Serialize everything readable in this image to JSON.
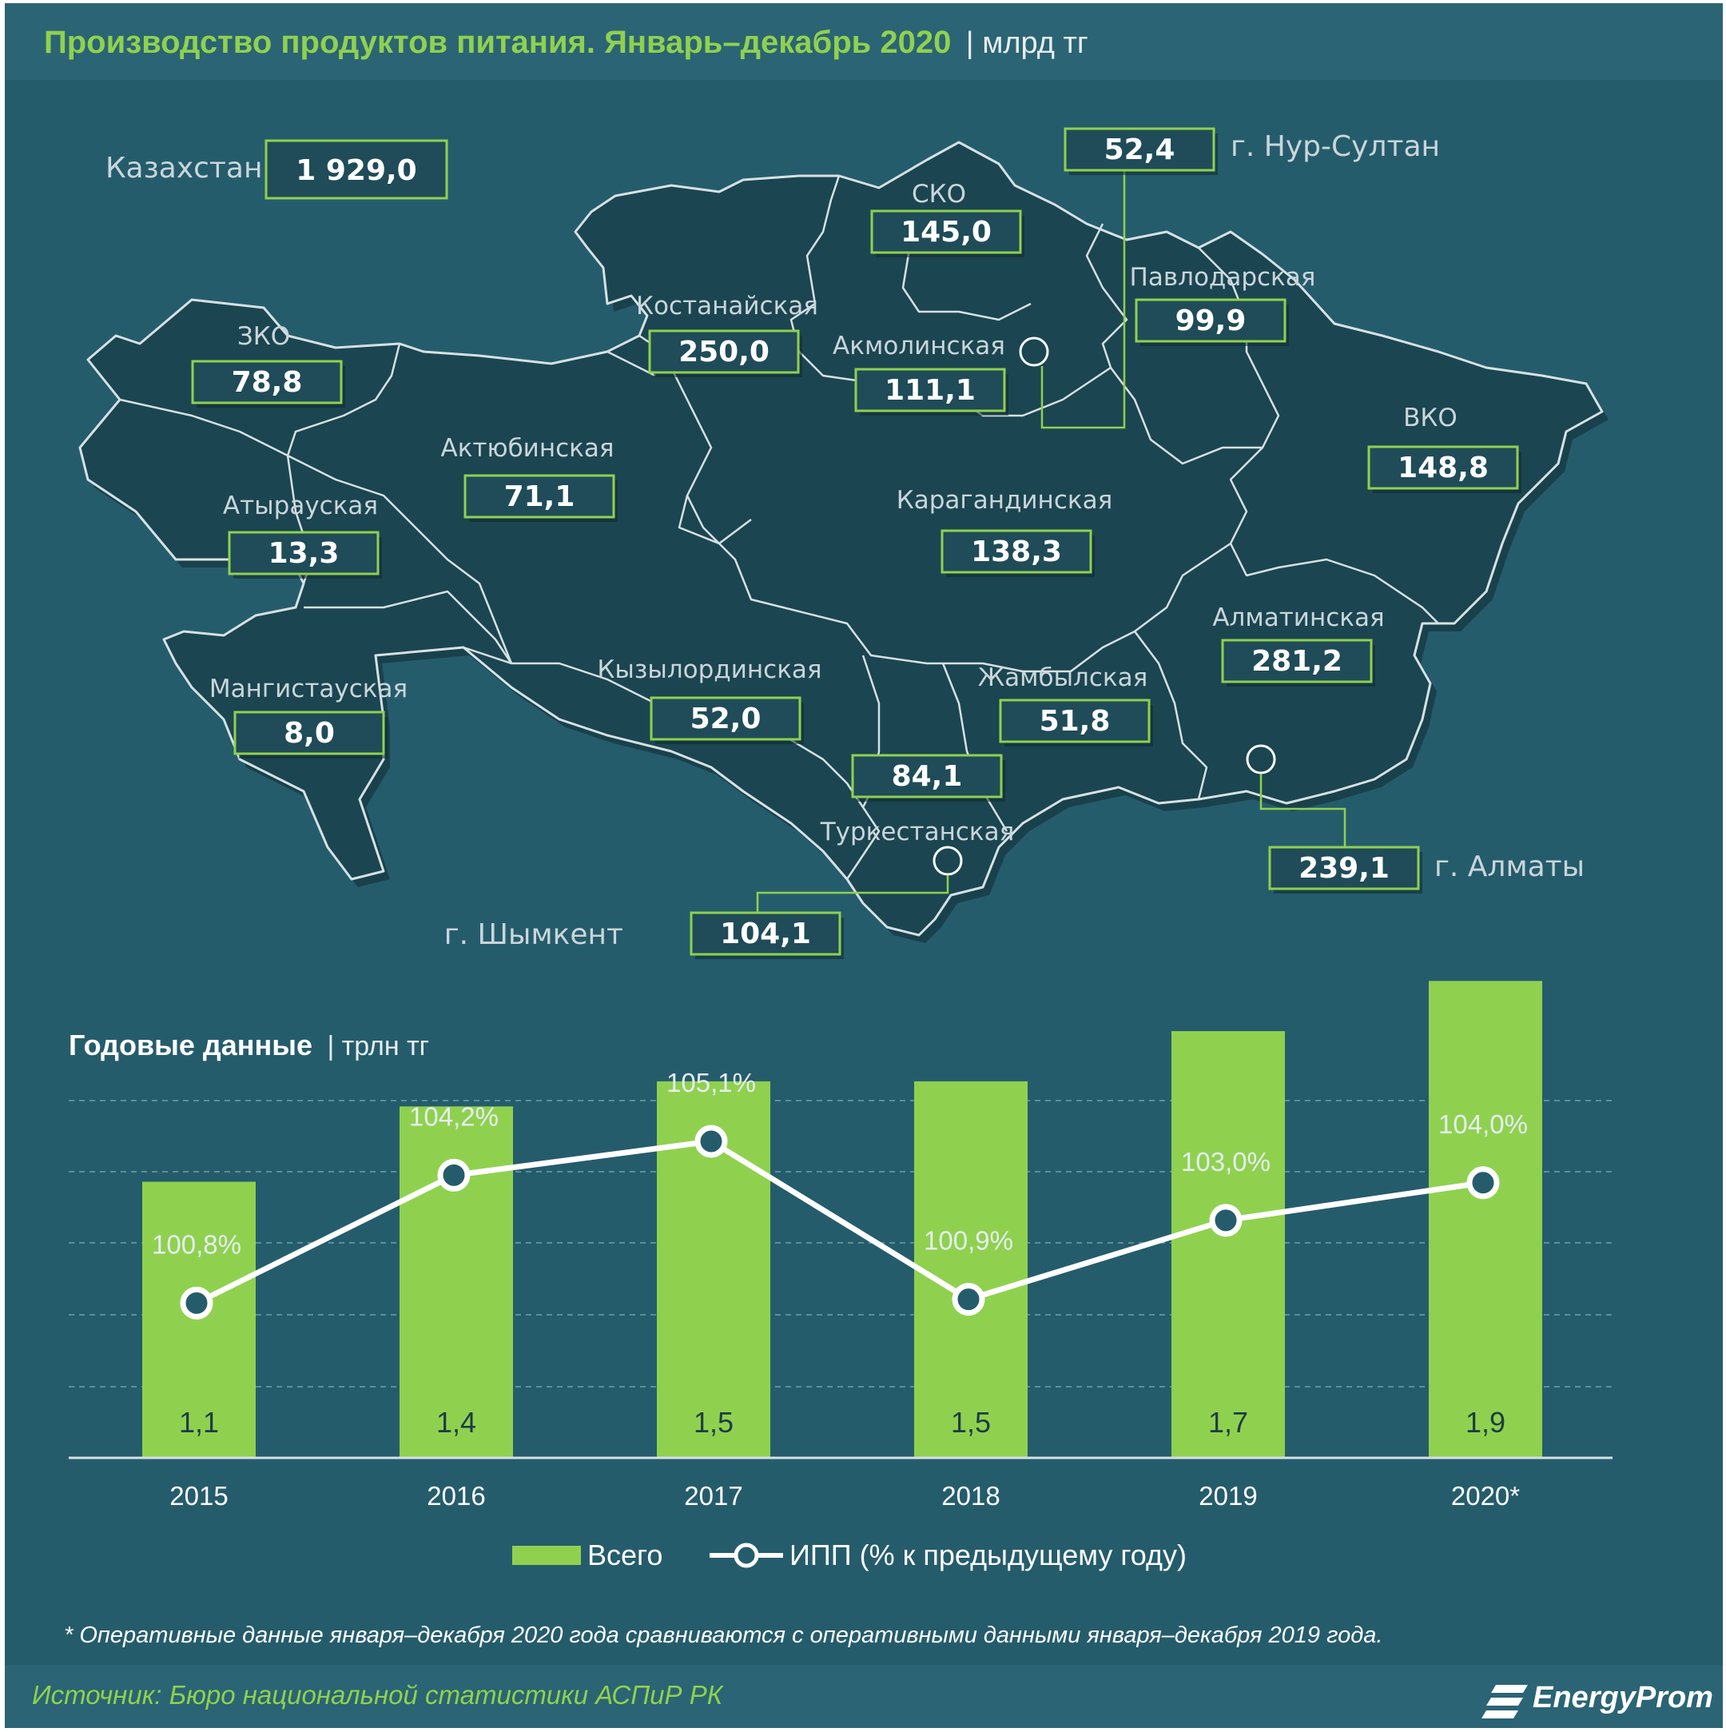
{
  "colors": {
    "background": "#255c6c",
    "header_band": "#2b6474",
    "map_fill": "#1b4551",
    "map_stroke": "#d6e1e4",
    "accent_green": "#8fd14f",
    "box_fill": "#1f4c58",
    "box_border": "#8fd14f",
    "line": "#ffffff",
    "grid": "#5b8e9a"
  },
  "header": {
    "title": "Производство продуктов питания. Январь–декабрь 2020",
    "unit": "| млрд тг"
  },
  "map": {
    "total": {
      "label": "Казахстан",
      "value": "1 929,0"
    },
    "regions": [
      {
        "id": "zko",
        "name": "ЗКО",
        "value": "78,8"
      },
      {
        "id": "aktobe",
        "name": "Актюбинская",
        "value": "71,1"
      },
      {
        "id": "atyrau",
        "name": "Атырауская",
        "value": "13,3"
      },
      {
        "id": "mangystau",
        "name": "Мангистауская",
        "value": "8,0"
      },
      {
        "id": "kostanay",
        "name": "Костанайская",
        "value": "250,0"
      },
      {
        "id": "sko",
        "name": "СКО",
        "value": "145,0"
      },
      {
        "id": "akmola",
        "name": "Акмолинская",
        "value": "111,1"
      },
      {
        "id": "pavlodar",
        "name": "Павлодарская",
        "value": "99,9"
      },
      {
        "id": "vko",
        "name": "ВКО",
        "value": "148,8"
      },
      {
        "id": "karaganda",
        "name": "Карагандинская",
        "value": "138,3"
      },
      {
        "id": "almaty_reg",
        "name": "Алматинская",
        "value": "281,2"
      },
      {
        "id": "kyzylorda",
        "name": "Кызылординская",
        "value": "52,0"
      },
      {
        "id": "zhambyl",
        "name": "Жамбылская",
        "value": "51,8"
      },
      {
        "id": "turkestan",
        "name": "Туркестанская",
        "value": "84,1"
      }
    ],
    "cities": [
      {
        "id": "nursultan",
        "name": "г. Нур-Султан",
        "value": "52,4"
      },
      {
        "id": "almaty",
        "name": "г. Алматы",
        "value": "239,1"
      },
      {
        "id": "shymkent",
        "name": "г. Шымкент",
        "value": "104,1"
      }
    ]
  },
  "chart_title": {
    "title": "Годовые данные",
    "unit": "| трлн тг"
  },
  "chart_data": {
    "type": "bar",
    "categories": [
      "2015",
      "2016",
      "2017",
      "2018",
      "2019",
      "2020*"
    ],
    "series": [
      {
        "name": "Всего",
        "type": "bar",
        "values": [
          1.1,
          1.4,
          1.5,
          1.5,
          1.7,
          1.9
        ],
        "labels": [
          "1,1",
          "1,4",
          "1,5",
          "1,5",
          "1,7",
          "1,9"
        ]
      },
      {
        "name": "ИПП (% к предыдущему году)",
        "type": "line",
        "values": [
          100.8,
          104.2,
          105.1,
          100.9,
          103.0,
          104.0
        ],
        "labels": [
          "100,8%",
          "104,2%",
          "105,1%",
          "100,9%",
          "103,0%",
          "104,0%"
        ]
      }
    ],
    "legend_position": "bottom-center",
    "grid": true
  },
  "footnote": "* Оперативные данные января–декабря 2020 года сравниваются с оперативными данными января–декабря 2019 года.",
  "source": "Источник: Бюро национальной статистики АСПиР РК",
  "brand": "EnergyProm"
}
